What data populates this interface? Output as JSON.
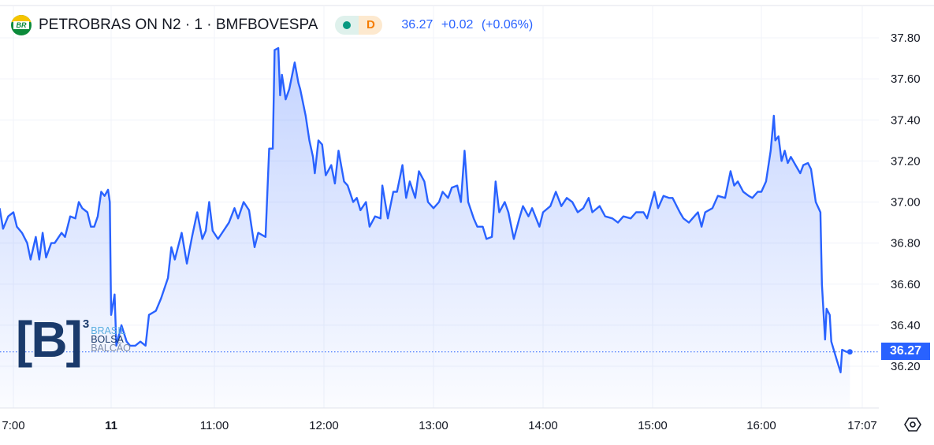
{
  "header": {
    "symbol": "PETROBRAS ON N2 · 1 · BMFBOVESPA",
    "logo_text": "BR",
    "market_status": "open",
    "interval_badge": "D",
    "last": "36.27",
    "change": "+0.02",
    "change_pct": "(+0.06%)"
  },
  "watermark": {
    "brand": "B",
    "sup": "3",
    "line1": "BRASIL",
    "line2": "BOLSA",
    "line3": "BALCÃO"
  },
  "colors": {
    "line": "#2962ff",
    "fill": "#2962ff",
    "grid": "#f0f3fa",
    "text": "#131722",
    "badge_open": "#089981",
    "badge_d": "#f57c00"
  },
  "chart_data": {
    "type": "area",
    "ylim": [
      36.12,
      37.86
    ],
    "yticks": [
      "37.80",
      "37.60",
      "37.40",
      "37.20",
      "37.00",
      "36.80",
      "36.60",
      "36.40",
      "36.20"
    ],
    "xticks": [
      "7:00",
      "11",
      "11:00",
      "12:00",
      "13:00",
      "14:00",
      "15:00",
      "16:00",
      "17:07"
    ],
    "last_price": "36.27",
    "grid": true,
    "prev_day": [
      [
        "16:52",
        36.97
      ],
      [
        "16:54",
        36.87
      ],
      [
        "16:57",
        36.93
      ],
      [
        "17:00",
        36.95
      ],
      [
        "17:02",
        36.88
      ],
      [
        "17:05",
        36.85
      ],
      [
        "17:08",
        36.8
      ],
      [
        "17:10",
        36.72
      ],
      [
        "17:13",
        36.83
      ],
      [
        "17:15",
        36.72
      ],
      [
        "17:17",
        36.85
      ],
      [
        "17:19",
        36.73
      ],
      [
        "17:22",
        36.8
      ],
      [
        "17:24",
        36.8
      ],
      [
        "17:28",
        36.85
      ],
      [
        "17:30",
        36.83
      ],
      [
        "17:33",
        36.93
      ],
      [
        "17:36",
        36.92
      ],
      [
        "17:38",
        37.0
      ],
      [
        "17:40",
        36.97
      ],
      [
        "17:43",
        36.95
      ],
      [
        "17:45",
        36.88
      ],
      [
        "17:47",
        36.88
      ],
      [
        "17:49",
        36.93
      ],
      [
        "17:51",
        37.05
      ],
      [
        "17:53",
        37.03
      ],
      [
        "17:55",
        37.06
      ],
      [
        "17:56",
        37.0
      ]
    ],
    "day_11": [
      [
        "10:00",
        36.45
      ],
      [
        "10:02",
        36.55
      ],
      [
        "10:03",
        36.3
      ],
      [
        "10:06",
        36.4
      ],
      [
        "10:09",
        36.32
      ],
      [
        "10:11",
        36.3
      ],
      [
        "10:14",
        36.3
      ],
      [
        "10:17",
        36.32
      ],
      [
        "10:20",
        36.3
      ],
      [
        "10:22",
        36.45
      ],
      [
        "10:26",
        36.47
      ],
      [
        "10:29",
        36.53
      ],
      [
        "10:33",
        36.63
      ],
      [
        "10:35",
        36.78
      ],
      [
        "10:37",
        36.72
      ],
      [
        "10:41",
        36.85
      ],
      [
        "10:44",
        36.7
      ],
      [
        "10:47",
        36.83
      ],
      [
        "10:50",
        36.95
      ],
      [
        "10:53",
        36.82
      ],
      [
        "10:55",
        36.86
      ],
      [
        "10:57",
        37.0
      ],
      [
        "10:59",
        36.86
      ],
      [
        "11:02",
        36.82
      ],
      [
        "11:05",
        36.86
      ],
      [
        "11:08",
        36.9
      ],
      [
        "11:11",
        36.97
      ],
      [
        "11:13",
        36.92
      ],
      [
        "11:16",
        37.0
      ],
      [
        "11:19",
        36.96
      ],
      [
        "11:22",
        36.78
      ],
      [
        "11:24",
        36.85
      ],
      [
        "11:28",
        36.83
      ],
      [
        "11:30",
        37.26
      ],
      [
        "11:32",
        37.26
      ],
      [
        "11:33",
        37.74
      ],
      [
        "11:35",
        37.75
      ],
      [
        "11:36",
        37.52
      ],
      [
        "11:37",
        37.62
      ],
      [
        "11:39",
        37.5
      ],
      [
        "11:41",
        37.55
      ],
      [
        "11:44",
        37.68
      ],
      [
        "11:46",
        37.58
      ],
      [
        "11:47",
        37.55
      ],
      [
        "11:50",
        37.42
      ],
      [
        "11:52",
        37.3
      ],
      [
        "11:54",
        37.22
      ],
      [
        "11:55",
        37.14
      ],
      [
        "11:57",
        37.3
      ],
      [
        "11:59",
        37.28
      ],
      [
        "12:01",
        37.13
      ],
      [
        "12:04",
        37.18
      ],
      [
        "12:06",
        37.09
      ],
      [
        "12:08",
        37.25
      ],
      [
        "12:11",
        37.1
      ],
      [
        "12:13",
        37.08
      ],
      [
        "12:16",
        37.0
      ],
      [
        "12:18",
        37.02
      ],
      [
        "12:20",
        36.96
      ],
      [
        "12:23",
        37.0
      ],
      [
        "12:25",
        36.88
      ],
      [
        "12:28",
        36.93
      ],
      [
        "12:31",
        36.92
      ],
      [
        "12:32",
        37.08
      ],
      [
        "12:35",
        36.92
      ],
      [
        "12:38",
        37.05
      ],
      [
        "12:40",
        37.05
      ],
      [
        "12:43",
        37.18
      ],
      [
        "12:45",
        37.02
      ],
      [
        "12:47",
        37.1
      ],
      [
        "12:50",
        37.02
      ],
      [
        "12:52",
        37.15
      ],
      [
        "12:55",
        37.1
      ],
      [
        "12:57",
        37.0
      ],
      [
        "13:00",
        36.97
      ],
      [
        "13:03",
        37.0
      ],
      [
        "13:05",
        37.05
      ],
      [
        "13:08",
        37.02
      ],
      [
        "13:10",
        37.07
      ],
      [
        "13:13",
        37.08
      ],
      [
        "13:15",
        37.0
      ],
      [
        "13:17",
        37.25
      ],
      [
        "13:19",
        37.0
      ],
      [
        "13:22",
        36.92
      ],
      [
        "13:24",
        36.88
      ],
      [
        "13:27",
        36.88
      ],
      [
        "13:29",
        36.82
      ],
      [
        "13:32",
        36.83
      ],
      [
        "13:34",
        37.1
      ],
      [
        "13:36",
        36.95
      ],
      [
        "13:39",
        37.0
      ],
      [
        "13:41",
        36.95
      ],
      [
        "13:44",
        36.82
      ],
      [
        "13:47",
        36.92
      ],
      [
        "13:49",
        36.98
      ],
      [
        "13:52",
        36.93
      ],
      [
        "13:54",
        36.97
      ],
      [
        "13:58",
        36.88
      ],
      [
        "14:00",
        36.95
      ],
      [
        "14:04",
        36.98
      ],
      [
        "14:07",
        37.05
      ],
      [
        "14:10",
        36.98
      ],
      [
        "14:13",
        37.02
      ],
      [
        "14:16",
        37.0
      ],
      [
        "14:19",
        36.95
      ],
      [
        "14:22",
        36.97
      ],
      [
        "14:25",
        37.02
      ],
      [
        "14:27",
        36.95
      ],
      [
        "14:31",
        36.98
      ],
      [
        "14:34",
        36.93
      ],
      [
        "14:38",
        36.92
      ],
      [
        "14:41",
        36.9
      ],
      [
        "14:44",
        36.93
      ],
      [
        "14:48",
        36.92
      ],
      [
        "14:51",
        36.95
      ],
      [
        "14:55",
        36.95
      ],
      [
        "14:57",
        36.92
      ],
      [
        "15:01",
        37.05
      ],
      [
        "15:03",
        36.97
      ],
      [
        "15:06",
        37.03
      ],
      [
        "15:09",
        37.02
      ],
      [
        "15:11",
        37.02
      ],
      [
        "15:15",
        36.95
      ],
      [
        "15:17",
        36.92
      ],
      [
        "15:20",
        36.9
      ],
      [
        "15:22",
        36.92
      ],
      [
        "15:25",
        36.95
      ],
      [
        "15:27",
        36.88
      ],
      [
        "15:29",
        36.95
      ],
      [
        "15:33",
        36.97
      ],
      [
        "15:36",
        37.03
      ],
      [
        "15:40",
        37.02
      ],
      [
        "15:43",
        37.15
      ],
      [
        "15:45",
        37.08
      ],
      [
        "15:47",
        37.1
      ],
      [
        "15:50",
        37.05
      ],
      [
        "15:53",
        37.03
      ],
      [
        "15:55",
        37.02
      ],
      [
        "15:58",
        37.05
      ],
      [
        "16:00",
        37.05
      ],
      [
        "16:03",
        37.1
      ],
      [
        "16:06",
        37.25
      ],
      [
        "16:08",
        37.42
      ],
      [
        "16:09",
        37.3
      ],
      [
        "16:11",
        37.32
      ],
      [
        "16:13",
        37.2
      ],
      [
        "16:15",
        37.25
      ],
      [
        "16:17",
        37.19
      ],
      [
        "16:19",
        37.22
      ],
      [
        "16:22",
        37.18
      ],
      [
        "16:25",
        37.14
      ],
      [
        "16:27",
        37.18
      ],
      [
        "16:30",
        37.19
      ],
      [
        "16:32",
        37.16
      ],
      [
        "16:35",
        37.0
      ],
      [
        "16:38",
        36.95
      ],
      [
        "16:39",
        36.6
      ],
      [
        "16:41",
        36.33
      ],
      [
        "16:42",
        36.48
      ],
      [
        "16:44",
        36.45
      ],
      [
        "16:45",
        36.32
      ],
      [
        "16:47",
        36.27
      ],
      [
        "16:49",
        36.22
      ],
      [
        "16:51",
        36.17
      ],
      [
        "16:52",
        36.28
      ],
      [
        "16:55",
        36.27
      ],
      [
        "16:57",
        36.27
      ]
    ]
  }
}
